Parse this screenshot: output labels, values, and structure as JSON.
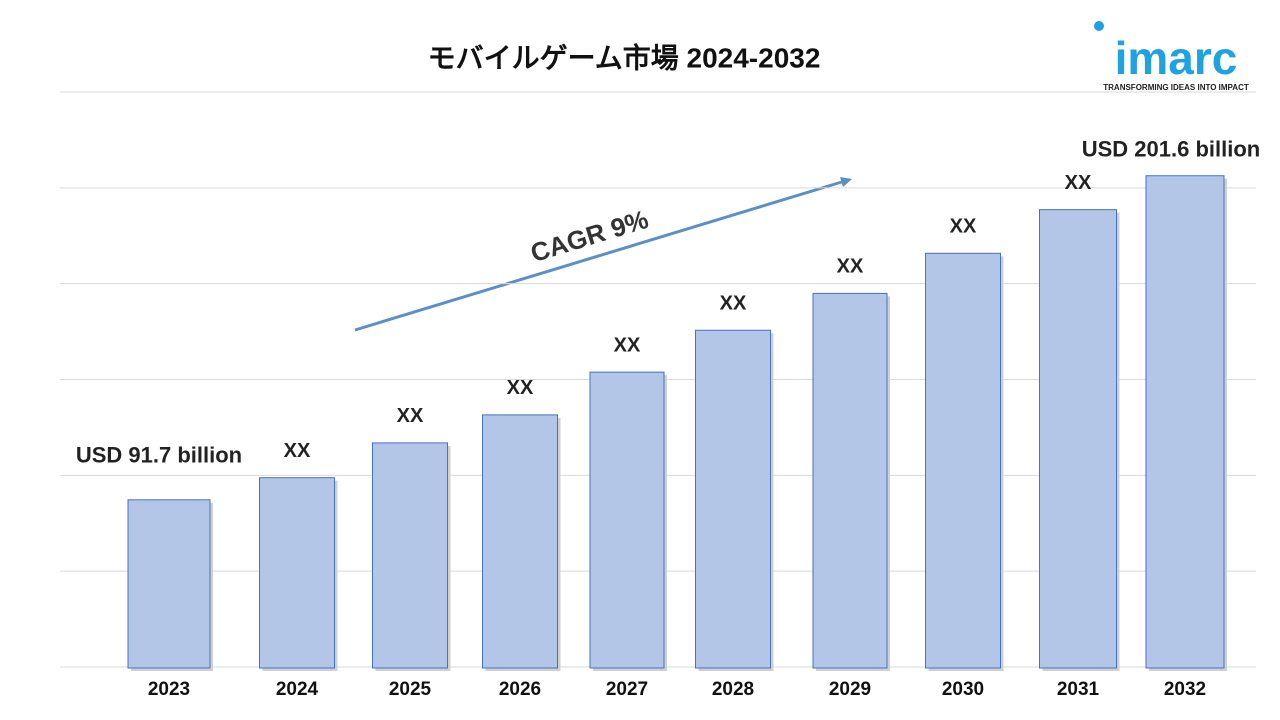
{
  "chart_data": {
    "type": "bar",
    "title": "モバイルゲーム市場 2024-2032",
    "categories": [
      "2023",
      "2024",
      "2025",
      "2026",
      "2027",
      "2028",
      "2029",
      "2030",
      "2031",
      "2032"
    ],
    "values": [
      91.7,
      99.2,
      111.0,
      120.5,
      135.0,
      149.2,
      161.7,
      175.3,
      190.1,
      201.6
    ],
    "value_labels": [
      "USD 91.7 billion",
      "XX",
      "XX",
      "XX",
      "XX",
      "XX",
      "XX",
      "XX",
      "XX",
      "USD 201.6 billion"
    ],
    "color": "#b4c6e7",
    "edge_color": "#4472c4",
    "ylim": [
      35,
      230
    ],
    "grid": true,
    "annotation": "CAGR 9%"
  },
  "logo": {
    "name": "imarc",
    "tagline": "TRANSFORMING IDEAS INTO IMPACT"
  }
}
